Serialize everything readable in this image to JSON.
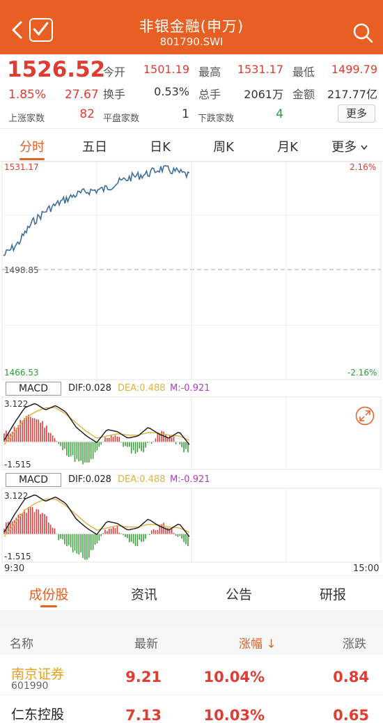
{
  "header": {
    "title": "非银金融(申万)",
    "code": "801790.SWI"
  },
  "quote": {
    "price": "1526.52",
    "change_pct": "1.85%",
    "change": "27.67",
    "rise_label": "上涨家数",
    "rise_count": "82",
    "flat_label": "平盘家数",
    "flat_count": "1",
    "fall_label": "下跌家数",
    "fall_count": "4",
    "open_label": "今开",
    "open": "1501.19",
    "high_label": "最高",
    "high": "1531.17",
    "low_label": "最低",
    "low": "1499.79",
    "turnover_label": "换手",
    "turnover": "0.53%",
    "volume_label": "总手",
    "volume": "2061万",
    "amount_label": "金额",
    "amount": "217.77亿",
    "more": "更多"
  },
  "tabs": [
    {
      "label": "分时"
    },
    {
      "label": "五日"
    },
    {
      "label": "日K"
    },
    {
      "label": "周K"
    },
    {
      "label": "月K"
    },
    {
      "label": "更多"
    }
  ],
  "intraday": {
    "y_max": "1531.17",
    "y_mid": "1498.85",
    "y_min": "1466.53",
    "pct_max": "2.16%",
    "pct_min": "-2.16%",
    "time_start": "9:30",
    "time_end": "15:00",
    "line_color": "#3d6e9e"
  },
  "macd": {
    "label": "MACD",
    "dif": "DIF:0.028",
    "dea": "DEA:0.488",
    "m": "M:-0.921",
    "y_max": "3.122",
    "y_min": "-1.515",
    "dif_color": "#222222",
    "dea_color": "#e0b040",
    "m_color": "#b03cc0"
  },
  "sub_tabs": [
    {
      "label": "成份股"
    },
    {
      "label": "资讯"
    },
    {
      "label": "公告"
    },
    {
      "label": "研报"
    }
  ],
  "list": {
    "headers": {
      "name": "名称",
      "latest": "最新",
      "change_pct": "涨幅 ↓",
      "change": "涨跌"
    },
    "rows": [
      {
        "name": "南京证券",
        "code": "601990",
        "latest": "9.21",
        "change_pct": "10.04%",
        "change": "0.84"
      },
      {
        "name": "仁东控股",
        "code": "",
        "latest": "7.13",
        "change_pct": "10.03%",
        "change": "0.65"
      }
    ]
  }
}
